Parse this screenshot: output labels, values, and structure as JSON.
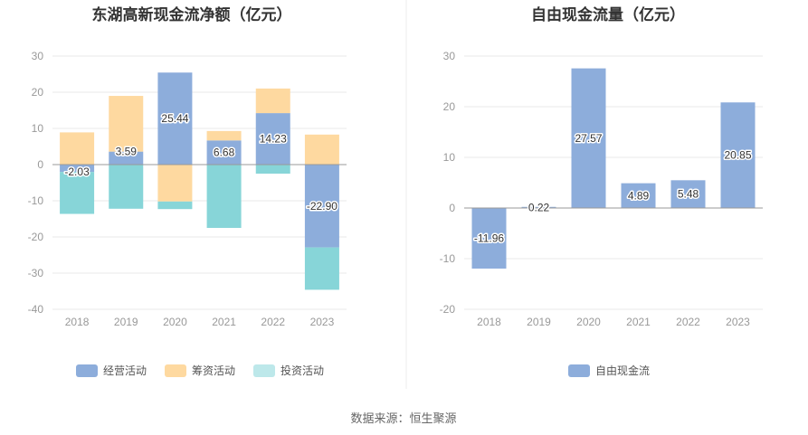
{
  "source": "数据来源：恒生聚源",
  "colors": {
    "operating": "#8daddb",
    "financing": "#fed9a0",
    "investing": "#87d5d8",
    "fcf": "#8daddb",
    "grid": "#e9e9e9",
    "axis": "#999999"
  },
  "chart_data": [
    {
      "type": "bar",
      "stacked": true,
      "title": "东湖高新现金流净额（亿元）",
      "categories": [
        "2018",
        "2019",
        "2020",
        "2021",
        "2022",
        "2023"
      ],
      "ylim": [
        -40,
        30
      ],
      "yticks": [
        "30",
        "20",
        "10",
        "0",
        "-10",
        "-20",
        "-30",
        "-40"
      ],
      "series": [
        {
          "name": "经营活动",
          "values": [
            -2.03,
            3.59,
            25.44,
            6.68,
            14.23,
            -22.9
          ],
          "labels": [
            "-2.03",
            "3.59",
            "25.44",
            "6.68",
            "14.23",
            "-22.90"
          ]
        },
        {
          "name": "筹资活动",
          "values": [
            8.9,
            15.4,
            -10.2,
            2.6,
            6.8,
            8.3
          ]
        },
        {
          "name": "投资活动",
          "values": [
            -11.6,
            -12.2,
            -2.1,
            -17.5,
            -2.5,
            -11.7
          ]
        }
      ],
      "legend": [
        "经营活动",
        "筹资活动",
        "投资活动"
      ]
    },
    {
      "type": "bar",
      "title": "自由现金流量（亿元）",
      "categories": [
        "2018",
        "2019",
        "2020",
        "2021",
        "2022",
        "2023"
      ],
      "ylim": [
        -20,
        30
      ],
      "yticks": [
        "30",
        "20",
        "10",
        "0",
        "-10",
        "-20"
      ],
      "series": [
        {
          "name": "自由现金流",
          "values": [
            -11.96,
            0.22,
            27.57,
            4.89,
            5.48,
            20.85
          ],
          "labels": [
            "-11.96",
            "0.22",
            "27.57",
            "4.89",
            "5.48",
            "20.85"
          ]
        }
      ],
      "legend": [
        "自由现金流"
      ]
    }
  ]
}
